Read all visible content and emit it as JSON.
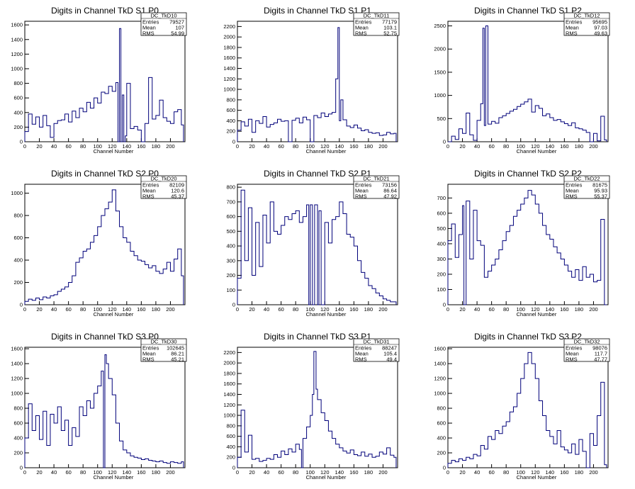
{
  "chart_data": [
    {
      "type": "line",
      "title": "Digits in Channel TkD S1 P0",
      "xlabel": "Channel Number",
      "xlim": [
        0,
        220
      ],
      "ylim": [
        0,
        1650
      ],
      "xticks": [
        0,
        20,
        40,
        60,
        80,
        100,
        120,
        140,
        160,
        180,
        200
      ],
      "yticks": [
        0,
        200,
        400,
        600,
        800,
        1000,
        1200,
        1400,
        1600
      ],
      "stats": {
        "name": "DC_TkD10",
        "entries": "79527",
        "mean": "107",
        "rms": "54.99"
      },
      "x": [
        0,
        5,
        10,
        15,
        20,
        25,
        30,
        35,
        40,
        45,
        50,
        55,
        60,
        65,
        70,
        75,
        80,
        85,
        90,
        95,
        100,
        105,
        110,
        115,
        120,
        125,
        128,
        130,
        132,
        134,
        136,
        138,
        140,
        145,
        150,
        155,
        160,
        165,
        170,
        175,
        180,
        185,
        190,
        195,
        200,
        205,
        210,
        215
      ],
      "y": [
        140,
        380,
        240,
        340,
        200,
        360,
        220,
        60,
        250,
        290,
        300,
        380,
        270,
        420,
        330,
        460,
        410,
        540,
        460,
        600,
        530,
        680,
        660,
        760,
        690,
        810,
        0,
        1550,
        0,
        640,
        0,
        80,
        800,
        180,
        210,
        160,
        0,
        250,
        880,
        310,
        360,
        570,
        330,
        280,
        250,
        410,
        440,
        230
      ]
    },
    {
      "type": "line",
      "title": "Digits in Channel TkD S1 P1",
      "xlabel": "Channel Number",
      "xlim": [
        0,
        220
      ],
      "ylim": [
        0,
        2300
      ],
      "xticks": [
        0,
        20,
        40,
        60,
        80,
        100,
        120,
        140,
        160,
        180,
        200
      ],
      "yticks": [
        0,
        200,
        400,
        600,
        800,
        1000,
        1200,
        1400,
        1600,
        1800,
        2000,
        2200
      ],
      "stats": {
        "name": "DC_TkD11",
        "entries": "77179",
        "mean": "103.1",
        "rms": "52.75"
      },
      "x": [
        0,
        5,
        10,
        15,
        20,
        25,
        30,
        35,
        40,
        45,
        50,
        55,
        60,
        65,
        70,
        75,
        80,
        85,
        90,
        95,
        100,
        105,
        110,
        115,
        120,
        125,
        130,
        135,
        138,
        140,
        142,
        145,
        150,
        155,
        160,
        165,
        170,
        175,
        180,
        185,
        190,
        195,
        200,
        205,
        210,
        215
      ],
      "y": [
        220,
        380,
        300,
        430,
        180,
        400,
        350,
        480,
        280,
        330,
        360,
        430,
        390,
        400,
        0,
        410,
        450,
        360,
        470,
        420,
        0,
        500,
        460,
        550,
        480,
        530,
        560,
        1200,
        2180,
        400,
        800,
        420,
        300,
        270,
        320,
        260,
        210,
        230,
        180,
        160,
        170,
        120,
        130,
        180,
        150,
        160
      ]
    },
    {
      "type": "line",
      "title": "Digits in Channel TkD S1 P2",
      "xlabel": "Channel Number",
      "xlim": [
        0,
        220
      ],
      "ylim": [
        0,
        2600
      ],
      "xticks": [
        0,
        20,
        40,
        60,
        80,
        100,
        120,
        140,
        160,
        180,
        200
      ],
      "yticks": [
        0,
        500,
        1000,
        1500,
        2000,
        2500
      ],
      "stats": {
        "name": "DC_TkD12",
        "entries": "95695",
        "mean": "97.03",
        "rms": "49.63"
      },
      "x": [
        0,
        5,
        10,
        15,
        20,
        25,
        30,
        35,
        40,
        45,
        48,
        50,
        52,
        55,
        60,
        65,
        70,
        75,
        80,
        85,
        90,
        95,
        100,
        105,
        110,
        115,
        120,
        125,
        130,
        135,
        140,
        145,
        150,
        155,
        160,
        165,
        170,
        175,
        180,
        185,
        190,
        195,
        200,
        205,
        210,
        215
      ],
      "y": [
        0,
        120,
        50,
        280,
        180,
        620,
        150,
        30,
        460,
        820,
        2450,
        350,
        2500,
        380,
        440,
        400,
        520,
        560,
        610,
        660,
        700,
        760,
        810,
        860,
        920,
        640,
        780,
        720,
        560,
        600,
        520,
        460,
        480,
        430,
        390,
        350,
        410,
        300,
        280,
        250,
        200,
        0,
        180,
        20,
        550,
        40
      ]
    },
    {
      "type": "line",
      "title": "Digits in Channel TkD S2 P0",
      "xlabel": "Channel Number",
      "xlim": [
        0,
        220
      ],
      "ylim": [
        0,
        1080
      ],
      "xticks": [
        0,
        20,
        40,
        60,
        80,
        100,
        120,
        140,
        160,
        180,
        200
      ],
      "yticks": [
        0,
        200,
        400,
        600,
        800,
        1000
      ],
      "stats": {
        "name": "DC_TkD20",
        "entries": "82109",
        "mean": "120.6",
        "rms": "45.37"
      },
      "x": [
        0,
        5,
        10,
        15,
        20,
        25,
        30,
        35,
        40,
        45,
        50,
        55,
        60,
        65,
        70,
        75,
        80,
        85,
        90,
        95,
        100,
        105,
        110,
        115,
        120,
        125,
        130,
        135,
        140,
        145,
        150,
        155,
        160,
        165,
        170,
        175,
        180,
        185,
        190,
        195,
        200,
        205,
        210,
        215
      ],
      "y": [
        30,
        50,
        40,
        60,
        45,
        70,
        60,
        80,
        90,
        120,
        140,
        160,
        200,
        260,
        380,
        420,
        480,
        500,
        560,
        620,
        700,
        800,
        860,
        920,
        1030,
        840,
        700,
        600,
        560,
        480,
        440,
        400,
        390,
        360,
        330,
        350,
        300,
        280,
        320,
        380,
        300,
        410,
        500,
        260
      ]
    },
    {
      "type": "line",
      "title": "Digits in Channel TkD S2 P1",
      "xlabel": "Channel Number",
      "xlim": [
        0,
        220
      ],
      "ylim": [
        0,
        820
      ],
      "xticks": [
        0,
        20,
        40,
        60,
        80,
        100,
        120,
        140,
        160,
        180,
        200
      ],
      "yticks": [
        0,
        100,
        200,
        300,
        400,
        500,
        600,
        700,
        800
      ],
      "stats": {
        "name": "DC_TkD21",
        "entries": "73156",
        "mean": "86.64",
        "rms": "47.92"
      },
      "x": [
        0,
        5,
        10,
        15,
        20,
        25,
        30,
        35,
        40,
        45,
        50,
        55,
        60,
        65,
        70,
        75,
        80,
        85,
        90,
        95,
        98,
        100,
        103,
        106,
        110,
        112,
        115,
        120,
        125,
        130,
        135,
        140,
        145,
        150,
        155,
        160,
        165,
        170,
        175,
        180,
        185,
        190,
        195,
        200,
        205,
        210,
        215
      ],
      "y": [
        180,
        780,
        300,
        660,
        200,
        560,
        260,
        610,
        420,
        700,
        500,
        480,
        540,
        600,
        580,
        620,
        640,
        560,
        600,
        680,
        0,
        680,
        0,
        680,
        0,
        640,
        0,
        560,
        420,
        580,
        600,
        700,
        620,
        480,
        460,
        400,
        300,
        220,
        180,
        130,
        110,
        80,
        60,
        40,
        30,
        20,
        20
      ]
    },
    {
      "type": "line",
      "title": "Digits in Channel TkD S2 P2",
      "xlabel": "Channel Number",
      "xlim": [
        0,
        220
      ],
      "ylim": [
        0,
        790
      ],
      "xticks": [
        0,
        20,
        40,
        60,
        80,
        100,
        120,
        140,
        160,
        180,
        200
      ],
      "yticks": [
        0,
        100,
        200,
        300,
        400,
        500,
        600,
        700
      ],
      "stats": {
        "name": "DC_TkD22",
        "entries": "81675",
        "mean": "95.93",
        "rms": "55.37"
      },
      "x": [
        0,
        5,
        10,
        15,
        20,
        22,
        25,
        30,
        35,
        40,
        45,
        50,
        55,
        60,
        65,
        70,
        75,
        80,
        85,
        90,
        95,
        100,
        105,
        110,
        115,
        120,
        125,
        130,
        135,
        140,
        145,
        150,
        155,
        160,
        165,
        170,
        175,
        180,
        185,
        190,
        195,
        200,
        205,
        210,
        215
      ],
      "y": [
        420,
        530,
        310,
        460,
        650,
        0,
        680,
        300,
        620,
        420,
        390,
        180,
        220,
        260,
        300,
        360,
        420,
        480,
        520,
        580,
        620,
        660,
        700,
        750,
        720,
        660,
        600,
        520,
        460,
        430,
        380,
        340,
        300,
        260,
        220,
        180,
        230,
        160,
        250,
        180,
        200,
        150,
        160,
        560,
        0
      ]
    },
    {
      "type": "line",
      "title": "Digits in Channel TkD S3 P0",
      "xlabel": "Channel Number",
      "xlim": [
        0,
        220
      ],
      "ylim": [
        0,
        1620
      ],
      "xticks": [
        0,
        20,
        40,
        60,
        80,
        100,
        120,
        140,
        160,
        180,
        200
      ],
      "yticks": [
        0,
        200,
        400,
        600,
        800,
        1000,
        1200,
        1400,
        1600
      ],
      "stats": {
        "name": "DC_TkD30",
        "entries": "102645",
        "mean": "86.21",
        "rms": "45.21"
      },
      "x": [
        0,
        5,
        10,
        15,
        20,
        25,
        30,
        35,
        40,
        45,
        50,
        55,
        60,
        65,
        70,
        75,
        80,
        85,
        90,
        95,
        100,
        105,
        108,
        110,
        112,
        115,
        120,
        125,
        130,
        135,
        140,
        145,
        150,
        155,
        160,
        165,
        170,
        175,
        180,
        185,
        190,
        195,
        200,
        205,
        210,
        215
      ],
      "y": [
        400,
        860,
        500,
        700,
        380,
        760,
        300,
        720,
        600,
        820,
        500,
        640,
        300,
        540,
        420,
        820,
        700,
        900,
        800,
        1000,
        1100,
        1300,
        0,
        1520,
        1400,
        1200,
        980,
        600,
        360,
        240,
        200,
        160,
        140,
        130,
        110,
        120,
        100,
        90,
        80,
        90,
        70,
        60,
        80,
        70,
        60,
        80
      ]
    },
    {
      "type": "line",
      "title": "Digits in Channel TkD S3 P1",
      "xlabel": "Channel Number",
      "xlim": [
        0,
        220
      ],
      "ylim": [
        0,
        2300
      ],
      "xticks": [
        0,
        20,
        40,
        60,
        80,
        100,
        120,
        140,
        160,
        180,
        200
      ],
      "yticks": [
        0,
        200,
        400,
        600,
        800,
        1000,
        1200,
        1400,
        1600,
        1800,
        2000,
        2200
      ],
      "stats": {
        "name": "DC_TkD31",
        "entries": "88247",
        "mean": "105.4",
        "rms": "49.4"
      },
      "x": [
        0,
        5,
        10,
        15,
        20,
        25,
        30,
        35,
        40,
        45,
        50,
        55,
        60,
        65,
        70,
        75,
        80,
        85,
        88,
        90,
        95,
        100,
        103,
        105,
        108,
        110,
        115,
        120,
        125,
        130,
        135,
        140,
        145,
        150,
        155,
        160,
        165,
        170,
        175,
        180,
        185,
        190,
        195,
        200,
        205,
        210,
        215
      ],
      "y": [
        200,
        1100,
        300,
        620,
        160,
        180,
        120,
        140,
        180,
        160,
        250,
        200,
        320,
        250,
        360,
        300,
        450,
        350,
        0,
        560,
        780,
        1000,
        1400,
        2220,
        1500,
        1300,
        1050,
        900,
        700,
        560,
        450,
        380,
        320,
        280,
        340,
        250,
        230,
        300,
        220,
        260,
        200,
        220,
        300,
        260,
        380,
        240,
        200
      ]
    },
    {
      "type": "line",
      "title": "Digits in Channel TkD S3 P2",
      "xlabel": "Channel Number",
      "xlim": [
        0,
        220
      ],
      "ylim": [
        0,
        1620
      ],
      "xticks": [
        0,
        20,
        40,
        60,
        80,
        100,
        120,
        140,
        160,
        180,
        200
      ],
      "yticks": [
        0,
        200,
        400,
        600,
        800,
        1000,
        1200,
        1400,
        1600
      ],
      "stats": {
        "name": "DC_TkD32",
        "entries": "98076",
        "mean": "117.7",
        "rms": "47.77"
      },
      "x": [
        0,
        5,
        10,
        15,
        20,
        25,
        30,
        35,
        40,
        45,
        50,
        55,
        60,
        65,
        70,
        75,
        80,
        85,
        90,
        95,
        100,
        105,
        110,
        115,
        120,
        125,
        130,
        135,
        140,
        145,
        150,
        155,
        160,
        165,
        170,
        175,
        180,
        185,
        190,
        195,
        200,
        205,
        210,
        215
      ],
      "y": [
        60,
        100,
        80,
        120,
        100,
        140,
        120,
        180,
        160,
        300,
        250,
        420,
        380,
        500,
        460,
        560,
        620,
        750,
        820,
        1000,
        1200,
        1400,
        1550,
        1400,
        1200,
        900,
        700,
        500,
        420,
        320,
        500,
        280,
        240,
        200,
        320,
        180,
        380,
        220,
        0,
        460,
        300,
        700,
        1150,
        40
      ]
    }
  ]
}
